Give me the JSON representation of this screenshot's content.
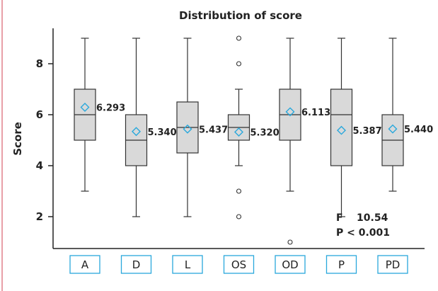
{
  "colors": {
    "box_fill": "#d9d9d9",
    "box_stroke": "#333333",
    "mean_marker": "#29a8dc",
    "category_box_stroke": "#29a8dc",
    "left_rule": "#e8a0a8"
  },
  "chart_data": {
    "type": "box",
    "title": "Distribution of score",
    "xlabel": "",
    "ylabel": "Score",
    "ylim": [
      0.8,
      9.6
    ],
    "yticks": [
      2,
      4,
      6,
      8
    ],
    "grid": false,
    "categories": [
      "A",
      "D",
      "L",
      "OS",
      "OD",
      "P",
      "PD"
    ],
    "boxes": [
      {
        "category": "A",
        "whisker_low": 3,
        "q1": 5,
        "median": 6,
        "q3": 7,
        "whisker_high": 9,
        "mean": 6.293,
        "mean_label": "6.293",
        "outliers": []
      },
      {
        "category": "D",
        "whisker_low": 2,
        "q1": 4,
        "median": 5,
        "q3": 6,
        "whisker_high": 9,
        "mean": 5.34,
        "mean_label": "5.340",
        "outliers": []
      },
      {
        "category": "L",
        "whisker_low": 2,
        "q1": 4.5,
        "median": 5.5,
        "q3": 6.5,
        "whisker_high": 9,
        "mean": 5.437,
        "mean_label": "5.437",
        "outliers": []
      },
      {
        "category": "OS",
        "whisker_low": 4,
        "q1": 5,
        "median": 5.5,
        "q3": 6,
        "whisker_high": 7,
        "mean": 5.32,
        "mean_label": "5.320",
        "outliers": [
          2,
          3,
          8,
          9
        ]
      },
      {
        "category": "OD",
        "whisker_low": 3,
        "q1": 5,
        "median": 6,
        "q3": 7,
        "whisker_high": 9,
        "mean": 6.113,
        "mean_label": "6.113",
        "outliers": [
          1
        ]
      },
      {
        "category": "P",
        "whisker_low": 2,
        "q1": 4,
        "median": 6,
        "q3": 7,
        "whisker_high": 9,
        "mean": 5.387,
        "mean_label": "5.387",
        "outliers": []
      },
      {
        "category": "PD",
        "whisker_low": 3,
        "q1": 4,
        "median": 5,
        "q3": 6,
        "whisker_high": 9,
        "mean": 5.44,
        "mean_label": "5.440",
        "outliers": []
      }
    ],
    "annotations": {
      "f_text": "F    10.54",
      "p_text": "P < 0.001"
    }
  }
}
